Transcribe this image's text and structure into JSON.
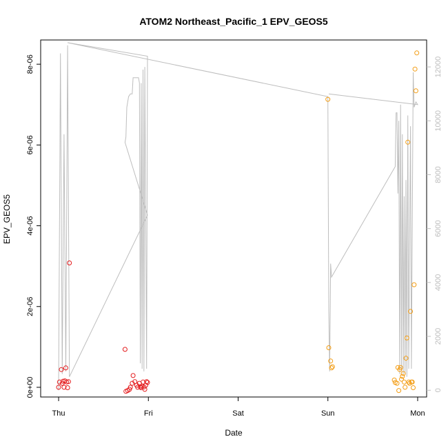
{
  "chart_data": {
    "type": "scatter",
    "title": "ATOM2 Northeast_Pacific_1 EPV_GEOS5",
    "xlabel": "Date",
    "ylabel": "EPV_GEOS5",
    "x_ticks": [
      "Thu",
      "Fri",
      "Sat",
      "Sun",
      "Mon"
    ],
    "xlim": [
      -0.2,
      4.1
    ],
    "ylim": [
      -2.4e-07,
      8.6e-06
    ],
    "y_ticks": [
      "0e+00",
      "2e-06",
      "4e-06",
      "6e-06",
      "8e-06"
    ],
    "y2lim": [
      -250,
      13000
    ],
    "y2_ticks": [
      "0",
      "2000",
      "4000",
      "6000",
      "8000",
      "10000",
      "12000"
    ],
    "colors": {
      "red": "#e41a1c",
      "orange": "#f39c12",
      "line": "#bdbdbd",
      "axis": "#000000"
    },
    "series": [
      {
        "color": "red",
        "points": [
          [
            0.0,
            0.0
          ],
          [
            0.01,
            1.3e-07
          ],
          [
            0.03,
            4.4e-07
          ],
          [
            0.04,
            1e-07
          ],
          [
            0.05,
            1.5e-07
          ],
          [
            0.06,
            0.0
          ],
          [
            0.07,
            1.6e-07
          ],
          [
            0.08,
            4.8e-07
          ],
          [
            0.09,
            1.3e-07
          ],
          [
            0.1,
            -1e-08
          ],
          [
            0.11,
            1.4e-07
          ],
          [
            0.12,
            3.08e-06
          ],
          [
            0.74,
            9.4e-07
          ],
          [
            0.75,
            -1e-07
          ],
          [
            0.77,
            -8e-08
          ],
          [
            0.79,
            -5e-08
          ],
          [
            0.8,
            0.0
          ],
          [
            0.82,
            1e-07
          ],
          [
            0.83,
            2.9e-07
          ],
          [
            0.85,
            1.4e-07
          ],
          [
            0.87,
            5e-08
          ],
          [
            0.88,
            0.0
          ],
          [
            0.9,
            1e-07
          ],
          [
            0.91,
            1.5e-08
          ],
          [
            0.92,
            -1e-08
          ],
          [
            0.93,
            3e-08
          ],
          [
            0.94,
            1.3e-07
          ],
          [
            0.95,
            1e-08
          ],
          [
            0.96,
            -5e-08
          ],
          [
            0.97,
            5e-08
          ],
          [
            0.98,
            1.4e-07
          ],
          [
            0.99,
            1.2e-07
          ]
        ]
      },
      {
        "color": "orange",
        "points": [
          [
            3.0,
            7.13e-06
          ],
          [
            3.01,
            9.8e-07
          ],
          [
            3.03,
            6.5e-07
          ],
          [
            3.04,
            4.8e-07
          ],
          [
            3.05,
            5.1e-07
          ],
          [
            3.74,
            1.8e-07
          ],
          [
            3.75,
            1.2e-07
          ],
          [
            3.77,
            1e-07
          ],
          [
            3.78,
            4.9e-07
          ],
          [
            3.79,
            -8e-08
          ],
          [
            3.8,
            4.4e-07
          ],
          [
            3.81,
            4.9e-07
          ],
          [
            3.82,
            2e-07
          ],
          [
            3.83,
            2.7e-07
          ],
          [
            3.84,
            3.4e-07
          ],
          [
            3.85,
            1.3e-07
          ],
          [
            3.86,
            0.0
          ],
          [
            3.87,
            7.2e-07
          ],
          [
            3.88,
            1.22e-06
          ],
          [
            3.89,
            6.07e-06
          ],
          [
            3.9,
            1.3e-07
          ],
          [
            3.91,
            1e-07
          ],
          [
            3.92,
            1.88e-06
          ],
          [
            3.93,
            1.3e-07
          ],
          [
            3.94,
            1.3e-07
          ],
          [
            3.95,
            -1e-08
          ],
          [
            3.96,
            2.54e-06
          ],
          [
            3.97,
            7.88e-06
          ],
          [
            3.98,
            7.34e-06
          ],
          [
            3.99,
            8.28e-06
          ]
        ]
      }
    ],
    "line_series": {
      "color": "line",
      "points": [
        [
          0.0,
          0
        ],
        [
          0.02,
          12500
        ],
        [
          0.04,
          600
        ],
        [
          0.06,
          9500
        ],
        [
          0.08,
          700
        ],
        [
          0.1,
          12800
        ],
        [
          0.12,
          500
        ],
        [
          0.99,
          6500
        ],
        [
          0.74,
          9200
        ],
        [
          0.75,
          9400
        ],
        [
          0.76,
          10500
        ],
        [
          0.78,
          10900
        ],
        [
          0.8,
          11000
        ],
        [
          0.82,
          11000
        ],
        [
          0.83,
          11600
        ],
        [
          0.85,
          11600
        ],
        [
          0.89,
          11600
        ],
        [
          0.9,
          11400
        ],
        [
          0.91,
          1000
        ],
        [
          0.92,
          11400
        ],
        [
          0.93,
          800
        ],
        [
          0.94,
          11900
        ],
        [
          0.95,
          700
        ],
        [
          0.96,
          12000
        ],
        [
          0.98,
          800
        ],
        [
          0.99,
          12400
        ],
        [
          0.1,
          12900
        ],
        [
          3.0,
          10900
        ],
        [
          3.01,
          3000
        ],
        [
          3.02,
          700
        ],
        [
          3.03,
          4700
        ],
        [
          3.04,
          4200
        ],
        [
          3.75,
          8300
        ],
        [
          3.76,
          10300
        ],
        [
          3.77,
          10300
        ],
        [
          3.78,
          7300
        ],
        [
          3.79,
          10000
        ],
        [
          3.8,
          600
        ],
        [
          3.81,
          10600
        ],
        [
          3.82,
          700
        ],
        [
          3.83,
          9500
        ],
        [
          3.84,
          600
        ],
        [
          3.85,
          7200
        ],
        [
          3.86,
          600
        ],
        [
          3.87,
          7800
        ],
        [
          3.88,
          500
        ],
        [
          3.89,
          10200
        ],
        [
          3.9,
          800
        ],
        [
          3.92,
          9800
        ],
        [
          3.93,
          800
        ],
        [
          3.95,
          11800
        ],
        [
          3.96,
          10500
        ],
        [
          3.98,
          10700
        ],
        [
          4.0,
          10600
        ],
        [
          3.01,
          11000
        ]
      ]
    }
  }
}
